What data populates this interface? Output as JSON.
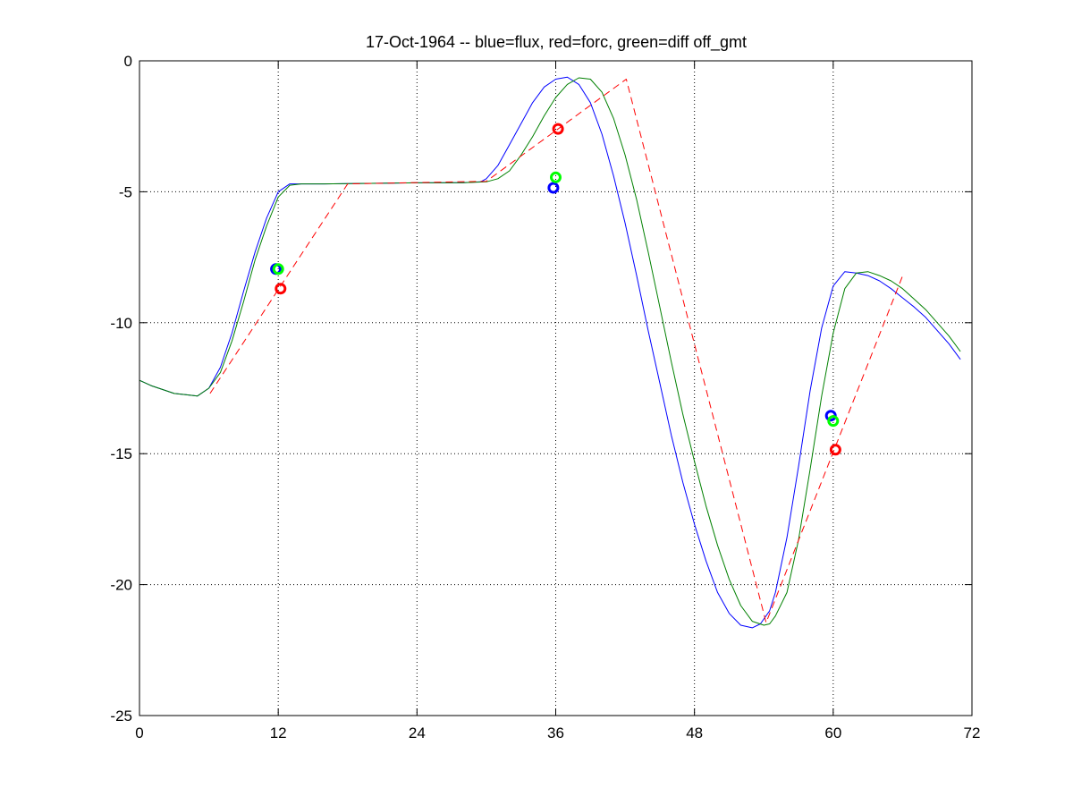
{
  "chart_data": {
    "type": "line",
    "title": "17-Oct-1964 -- blue=flux, red=forc, green=diff off_gmt",
    "xlabel": "",
    "ylabel": "",
    "xlim": [
      0,
      72
    ],
    "ylim": [
      -25,
      0
    ],
    "xticks": [
      0,
      12,
      24,
      36,
      48,
      60,
      72
    ],
    "yticks": [
      0,
      -5,
      -10,
      -15,
      -20,
      -25
    ],
    "grid": true,
    "legend": "none",
    "series": [
      {
        "color": "#0000ff",
        "style": "solid",
        "x": [
          0,
          1,
          2,
          3,
          4,
          5,
          6,
          7,
          8,
          9,
          10,
          11,
          12,
          13,
          14,
          16,
          20,
          24,
          28,
          29.5,
          30,
          31,
          32,
          33,
          34,
          35,
          36,
          37,
          38,
          39,
          40,
          41,
          42,
          43,
          44,
          45,
          46,
          47,
          48,
          49,
          50,
          51,
          52,
          53,
          53.7,
          54.5,
          55,
          56,
          57,
          58,
          59,
          60,
          61,
          62,
          63,
          64,
          65,
          66,
          67,
          68,
          69,
          70,
          71
        ],
        "y": [
          -12.2,
          -12.4,
          -12.55,
          -12.7,
          -12.75,
          -12.8,
          -12.5,
          -11.7,
          -10.4,
          -8.8,
          -7.3,
          -6.0,
          -5.0,
          -4.7,
          -4.7,
          -4.7,
          -4.68,
          -4.66,
          -4.65,
          -4.62,
          -4.5,
          -4.0,
          -3.2,
          -2.4,
          -1.6,
          -1.0,
          -0.7,
          -0.62,
          -0.9,
          -1.6,
          -2.8,
          -4.4,
          -6.2,
          -8.2,
          -10.3,
          -12.3,
          -14.3,
          -16.1,
          -17.7,
          -19.1,
          -20.3,
          -21.1,
          -21.55,
          -21.65,
          -21.5,
          -21.0,
          -20.3,
          -18.2,
          -15.5,
          -12.6,
          -10.2,
          -8.6,
          -8.05,
          -8.1,
          -8.2,
          -8.4,
          -8.7,
          -9.05,
          -9.4,
          -9.8,
          -10.3,
          -10.8,
          -11.4
        ]
      },
      {
        "color": "#008000",
        "style": "solid",
        "x": [
          0,
          1,
          2,
          3,
          4,
          5,
          6,
          7,
          8,
          9,
          10,
          11,
          12,
          13,
          14,
          16,
          20,
          24,
          28,
          30,
          31,
          32,
          33,
          34,
          35,
          36,
          37,
          38,
          39,
          40,
          41,
          42,
          43,
          44,
          45,
          46,
          47,
          48,
          49,
          50,
          51,
          52,
          53,
          54,
          54.5,
          55,
          56,
          57,
          58,
          59,
          60,
          61,
          62,
          63,
          64,
          65,
          66,
          67,
          68,
          69,
          70,
          71
        ],
        "y": [
          -12.2,
          -12.4,
          -12.55,
          -12.7,
          -12.75,
          -12.8,
          -12.5,
          -11.9,
          -10.7,
          -9.2,
          -7.6,
          -6.3,
          -5.2,
          -4.75,
          -4.7,
          -4.7,
          -4.68,
          -4.66,
          -4.65,
          -4.62,
          -4.5,
          -4.2,
          -3.6,
          -2.9,
          -2.1,
          -1.4,
          -0.9,
          -0.65,
          -0.7,
          -1.2,
          -2.2,
          -3.6,
          -5.3,
          -7.3,
          -9.4,
          -11.5,
          -13.5,
          -15.3,
          -17.0,
          -18.5,
          -19.8,
          -20.8,
          -21.4,
          -21.55,
          -21.5,
          -21.2,
          -20.3,
          -18.3,
          -15.6,
          -12.8,
          -10.4,
          -8.7,
          -8.1,
          -8.05,
          -8.2,
          -8.4,
          -8.7,
          -9.1,
          -9.5,
          -10.0,
          -10.5,
          -11.1
        ]
      },
      {
        "color": "#ff0000",
        "style": "dashed",
        "x": [
          6.1,
          18,
          30,
          42.1,
          54.2,
          66.1
        ],
        "y": [
          -12.7,
          -4.7,
          -4.6,
          -0.7,
          -21.45,
          -8.1
        ]
      }
    ],
    "markers": [
      {
        "color": "#0000ff",
        "x": 11.8,
        "y": -7.95
      },
      {
        "color": "#00ff00",
        "x": 12.0,
        "y": -7.95
      },
      {
        "color": "#ff0000",
        "x": 12.2,
        "y": -8.7
      },
      {
        "color": "#0000ff",
        "x": 35.8,
        "y": -4.85
      },
      {
        "color": "#00ff00",
        "x": 36.0,
        "y": -4.45
      },
      {
        "color": "#ff0000",
        "x": 36.2,
        "y": -2.6
      },
      {
        "color": "#0000ff",
        "x": 59.8,
        "y": -13.55
      },
      {
        "color": "#00ff00",
        "x": 60.0,
        "y": -13.75
      },
      {
        "color": "#ff0000",
        "x": 60.2,
        "y": -14.85
      }
    ]
  }
}
